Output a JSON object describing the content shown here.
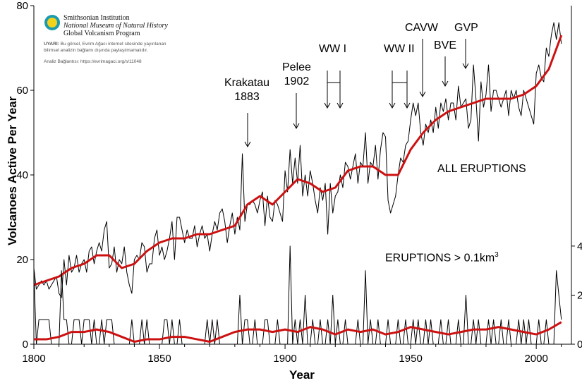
{
  "logo": {
    "line1": "Smithsonian Institution",
    "line2": "National Museum of Natural History",
    "line3": "Global Volcanism Program"
  },
  "watermark": {
    "label": "UYARI:",
    "text1": " Bu görsel, Evrim Ağacı internet sitesinde yayınlanan",
    "text2": "bilimsel analizin bağlamı dışında paylaşılmamalıdır.",
    "link": "Analiz Bağlantısı: https://evrimagaci.org/s/11048"
  },
  "chart_data": {
    "type": "line",
    "xlabel": "Year",
    "ylabel": "Volcanoes Active Per Year",
    "xlim": [
      1800,
      2014
    ],
    "ylim": [
      0,
      80
    ],
    "y2lim": [
      0,
      13.8
    ],
    "xticks": [
      1800,
      1850,
      1900,
      1950,
      2000
    ],
    "yticks": [
      0,
      20,
      40,
      60,
      80
    ],
    "y2ticks": [
      0,
      2,
      4
    ],
    "colors": {
      "raw": "#000000",
      "smoothed": "#cc1111"
    },
    "all_eruptions": {
      "label": "ALL ERUPTIONS",
      "start_year": 1800,
      "values": [
        18,
        13,
        14,
        15,
        14,
        15,
        13,
        14,
        15,
        16,
        12,
        11,
        20,
        14,
        21,
        17,
        18,
        21,
        17,
        19,
        20,
        17,
        22,
        23,
        19,
        22,
        24,
        22,
        27,
        29,
        18,
        19,
        23,
        17,
        20,
        19,
        23,
        17,
        14,
        12,
        20,
        21,
        20,
        24,
        23,
        17,
        19,
        19,
        25,
        27,
        21,
        23,
        20,
        22,
        25,
        29,
        20,
        30,
        30,
        27,
        24,
        27,
        25,
        25,
        28,
        23,
        26,
        28,
        25,
        26,
        22,
        26,
        29,
        27,
        31,
        32,
        29,
        24,
        28,
        31,
        26,
        30,
        27,
        45,
        29,
        33,
        33,
        34,
        33,
        31,
        34,
        36,
        28,
        35,
        30,
        29,
        34,
        33,
        31,
        29,
        41,
        36,
        46,
        38,
        44,
        38,
        47,
        35,
        40,
        35,
        41,
        38,
        34,
        31,
        37,
        34,
        38,
        26,
        38,
        31,
        35,
        36,
        40,
        37,
        43,
        42,
        39,
        42,
        45,
        38,
        43,
        42,
        50,
        38,
        43,
        42,
        47,
        39,
        46,
        50,
        49,
        34,
        31,
        33,
        35,
        40,
        44,
        43,
        47,
        48,
        53,
        57,
        54,
        57,
        50,
        47,
        52,
        50,
        53,
        50,
        56,
        51,
        57,
        55,
        58,
        53,
        57,
        57,
        53,
        61,
        56,
        57,
        58,
        51,
        53,
        66,
        58,
        48,
        62,
        56,
        59,
        66,
        55,
        60,
        60,
        58,
        56,
        58,
        60,
        54,
        60,
        58,
        60,
        56,
        54,
        60,
        58,
        56,
        54,
        52,
        64,
        66,
        63,
        62,
        70,
        68,
        73,
        76,
        72,
        76,
        71
      ],
      "smoothed_years": [
        1800,
        1805,
        1810,
        1815,
        1820,
        1825,
        1830,
        1835,
        1840,
        1845,
        1850,
        1855,
        1860,
        1865,
        1870,
        1875,
        1880,
        1885,
        1890,
        1895,
        1900,
        1905,
        1910,
        1915,
        1920,
        1925,
        1930,
        1935,
        1940,
        1945,
        1950,
        1955,
        1960,
        1965,
        1970,
        1975,
        1980,
        1985,
        1990,
        1995,
        2000,
        2005,
        2010
      ],
      "smoothed": [
        14,
        15,
        16,
        18,
        19,
        21,
        21,
        18,
        19,
        22,
        24,
        25,
        25,
        26,
        26,
        27,
        28,
        33,
        35,
        33,
        36,
        39,
        38,
        36,
        37,
        41,
        42,
        42,
        40,
        40,
        46,
        50,
        53,
        55,
        56,
        57,
        58,
        58,
        58,
        59,
        61,
        65,
        73
      ]
    },
    "large_eruptions": {
      "label": "ERUPTIONS > 0.1km",
      "label_sup": "3",
      "start_year": 1800,
      "values": [
        3,
        0,
        1,
        1,
        1,
        1,
        1,
        0,
        0,
        0,
        0,
        3,
        1,
        1,
        0,
        0,
        1,
        1,
        1,
        0,
        1,
        1,
        1,
        0,
        1,
        0,
        0,
        1,
        0,
        1,
        1,
        1,
        0,
        0,
        0,
        0,
        0,
        0,
        0,
        1,
        0,
        0,
        0,
        1,
        0,
        1,
        0,
        0,
        0,
        0,
        0,
        0,
        1,
        1,
        0,
        1,
        0,
        0,
        1,
        0,
        0,
        0,
        0,
        0,
        0,
        0,
        0,
        0,
        0,
        1,
        0,
        1,
        0,
        1,
        0,
        0,
        0,
        0,
        0,
        0,
        0,
        0,
        2,
        0,
        1,
        1,
        0,
        0,
        1,
        0,
        0,
        0,
        1,
        1,
        0,
        0,
        0,
        1,
        0,
        0,
        0,
        0,
        4,
        0,
        1,
        0,
        1,
        0,
        2,
        0,
        0,
        1,
        0,
        0,
        1,
        0,
        0,
        1,
        0,
        2,
        0,
        1,
        0,
        0,
        1,
        0,
        0,
        0,
        0,
        1,
        0,
        0,
        3,
        0,
        1,
        0,
        0,
        1,
        0,
        0,
        0,
        1,
        0,
        0,
        0,
        1,
        0,
        0,
        1,
        0,
        0,
        1,
        0,
        1,
        0,
        0,
        1,
        0,
        1,
        0,
        0,
        0,
        1,
        0,
        0,
        1,
        0,
        0,
        0,
        1,
        0,
        0,
        2,
        0,
        0,
        1,
        0,
        1,
        0,
        0,
        0,
        1,
        0,
        1,
        0,
        0,
        1,
        0,
        0,
        1,
        0,
        0,
        0,
        1,
        0,
        1,
        0,
        1,
        0,
        0,
        0,
        1,
        0,
        0,
        1,
        0,
        0,
        0,
        3,
        2,
        1
      ],
      "smoothed_years": [
        1800,
        1805,
        1810,
        1815,
        1820,
        1825,
        1830,
        1835,
        1840,
        1845,
        1850,
        1855,
        1860,
        1865,
        1870,
        1875,
        1880,
        1885,
        1890,
        1895,
        1900,
        1905,
        1910,
        1915,
        1920,
        1925,
        1930,
        1935,
        1940,
        1945,
        1950,
        1955,
        1960,
        1965,
        1970,
        1975,
        1980,
        1985,
        1990,
        1995,
        2000,
        2005,
        2010
      ],
      "smoothed": [
        0.2,
        0.2,
        0.3,
        0.5,
        0.5,
        0.6,
        0.5,
        0.3,
        0.1,
        0.2,
        0.2,
        0.3,
        0.3,
        0.2,
        0.1,
        0.3,
        0.5,
        0.6,
        0.6,
        0.5,
        0.6,
        0.5,
        0.7,
        0.6,
        0.4,
        0.6,
        0.5,
        0.6,
        0.4,
        0.5,
        0.7,
        0.6,
        0.5,
        0.4,
        0.5,
        0.6,
        0.6,
        0.7,
        0.6,
        0.5,
        0.4,
        0.6,
        0.9
      ]
    },
    "annotations": [
      {
        "id": "krakatau",
        "text": "Krakatau\n1883"
      },
      {
        "id": "pelee",
        "text": "Pelee\n1902"
      },
      {
        "id": "ww1",
        "text": "WW I"
      },
      {
        "id": "ww2",
        "text": "WW II"
      },
      {
        "id": "cavw",
        "text": "CAVW"
      },
      {
        "id": "bve",
        "text": "BVE"
      },
      {
        "id": "gvp",
        "text": "GVP"
      }
    ]
  }
}
